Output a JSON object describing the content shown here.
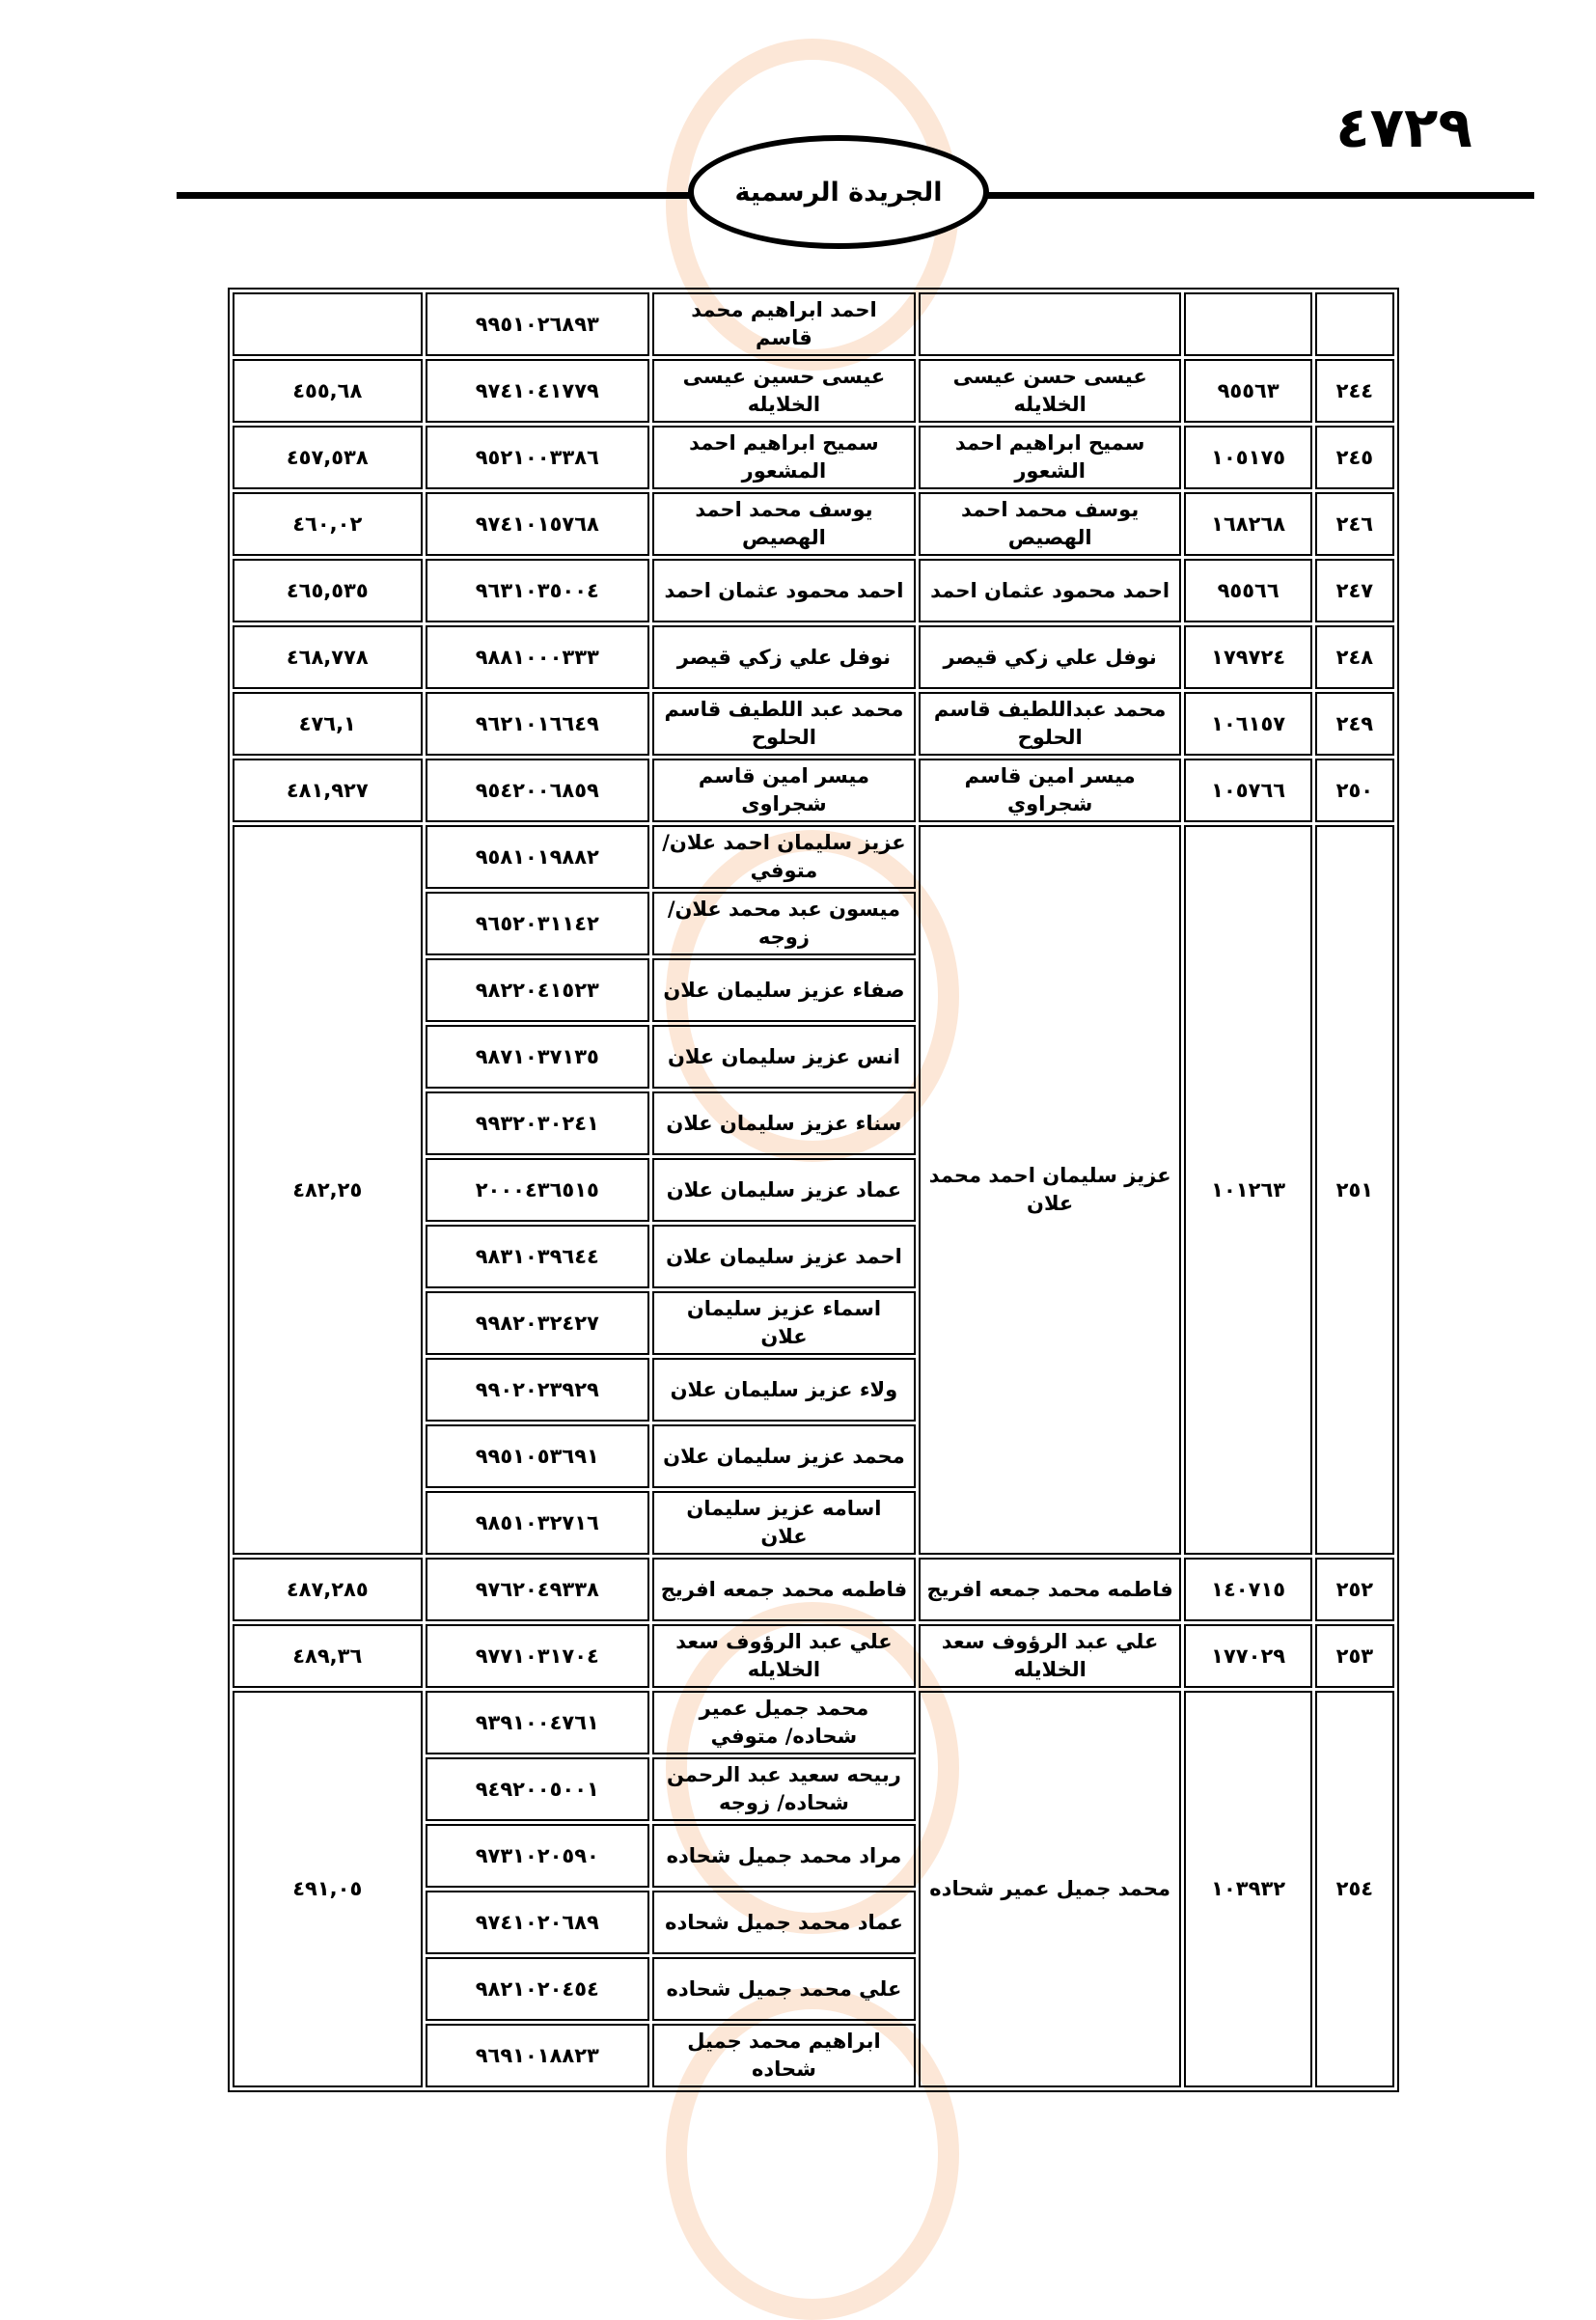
{
  "header": {
    "page_number": "٤٧٢٩",
    "title": "الجريدة الرسمية"
  },
  "rows": [
    {
      "serial": "",
      "number": "",
      "name": "",
      "heirs": [
        {
          "name": "احمد ابراهيم محمد قاسم",
          "id": "٩٩٥١٠٢٦٨٩٣"
        }
      ],
      "amount": ""
    },
    {
      "serial": "٢٤٤",
      "number": "٩٥٥٦٣",
      "name": "عيسى حسن عيسى الخلايله",
      "heirs": [
        {
          "name": "عيسى حسين عيسى الخلايله",
          "id": "٩٧٤١٠٤١٧٧٩"
        }
      ],
      "amount": "٤٥٥,٦٨"
    },
    {
      "serial": "٢٤٥",
      "number": "١٠٥١٧٥",
      "name": "سميح ابراهيم احمد الشعور",
      "heirs": [
        {
          "name": "سميح ابراهيم احمد المشعور",
          "id": "٩٥٢١٠٠٣٣٨٦"
        }
      ],
      "amount": "٤٥٧,٥٣٨"
    },
    {
      "serial": "٢٤٦",
      "number": "١٦٨٢٦٨",
      "name": "يوسف محمد احمد الهصيص",
      "heirs": [
        {
          "name": "يوسف محمد احمد الهصيص",
          "id": "٩٧٤١٠١٥٧٦٨"
        }
      ],
      "amount": "٤٦٠,٠٢"
    },
    {
      "serial": "٢٤٧",
      "number": "٩٥٥٦٦",
      "name": "احمد محمود عثمان احمد",
      "heirs": [
        {
          "name": "احمد محمود عثمان احمد",
          "id": "٩٦٣١٠٣٥٠٠٤"
        }
      ],
      "amount": "٤٦٥,٥٣٥"
    },
    {
      "serial": "٢٤٨",
      "number": "١٧٩٧٢٤",
      "name": "نوفل علي زكي قيصر",
      "heirs": [
        {
          "name": "نوفل علي زكي قيصر",
          "id": "٩٨٨١٠٠٠٣٣٣"
        }
      ],
      "amount": "٤٦٨,٧٧٨"
    },
    {
      "serial": "٢٤٩",
      "number": "١٠٦١٥٧",
      "name": "محمد عبداللطيف قاسم الحلوح",
      "heirs": [
        {
          "name": "محمد عبد اللطيف قاسم الحلوح",
          "id": "٩٦٢١٠١٦٦٤٩"
        }
      ],
      "amount": "٤٧٦,١"
    },
    {
      "serial": "٢٥٠",
      "number": "١٠٥٧٦٦",
      "name": "ميسر  امين قاسم  شجراوي",
      "heirs": [
        {
          "name": "ميسر امين قاسم شجراوى",
          "id": "٩٥٤٢٠٠٦٨٥٩"
        }
      ],
      "amount": "٤٨١,٩٢٧"
    },
    {
      "serial": "٢٥١",
      "number": "١٠١٢٦٣",
      "name": "عزيز سليمان احمد محمد علان",
      "heirs": [
        {
          "name": "عزيز سليمان احمد علان/ متوفي",
          "id": "٩٥٨١٠١٩٨٨٢"
        },
        {
          "name": "ميسون عبد محمد علان/زوجه",
          "id": "٩٦٥٢٠٣١١٤٢"
        },
        {
          "name": "صفاء عزيز سليمان علان",
          "id": "٩٨٢٢٠٤١٥٢٣"
        },
        {
          "name": "انس عزيز سليمان علان",
          "id": "٩٨٧١٠٣٧١٣٥"
        },
        {
          "name": "سناء عزيز سليمان علان",
          "id": "٩٩٣٢٠٣٠٢٤١"
        },
        {
          "name": "عماد عزيز سليمان علان",
          "id": "٢٠٠٠٤٣٦٥١٥"
        },
        {
          "name": "احمد عزيز سليمان علان",
          "id": "٩٨٣١٠٣٩٦٤٤"
        },
        {
          "name": "اسماء عزيز سليمان علان",
          "id": "٩٩٨٢٠٣٢٤٢٧"
        },
        {
          "name": "ولاء عزيز سليمان علان",
          "id": "٩٩٠٢٠٢٣٩٢٩"
        },
        {
          "name": "محمد عزيز سليمان علان",
          "id": "٩٩٥١٠٥٣٦٩١"
        },
        {
          "name": "اسامه عزيز سليمان علان",
          "id": "٩٨٥١٠٣٢٧١٦"
        }
      ],
      "amount": "٤٨٢,٢٥"
    },
    {
      "serial": "٢٥٢",
      "number": "١٤٠٧١٥",
      "name": "فاطمه محمد جمعه افريج",
      "heirs": [
        {
          "name": "فاطمه محمد جمعه افريج",
          "id": "٩٧٦٢٠٤٩٣٣٨"
        }
      ],
      "amount": "٤٨٧,٢٨٥"
    },
    {
      "serial": "٢٥٣",
      "number": "١٧٧٠٢٩",
      "name": "علي عبد الرؤوف سعد الخلايله",
      "heirs": [
        {
          "name": "علي عبد الرؤوف سعد الخلايله",
          "id": "٩٧٧١٠٣١٧٠٤"
        }
      ],
      "amount": "٤٨٩,٣٦"
    },
    {
      "serial": "٢٥٤",
      "number": "١٠٣٩٣٢",
      "name": "محمد جميل عمير شحاده",
      "heirs": [
        {
          "name": "محمد جميل عمير شحاده/ متوفي",
          "id": "٩٣٩١٠٠٤٧٦١"
        },
        {
          "name": "ربيحه سعيد عبد الرحمن شحاده/ زوجه",
          "id": "٩٤٩٢٠٠٥٠٠١"
        },
        {
          "name": "مراد محمد جميل شحاده",
          "id": "٩٧٣١٠٢٠٥٩٠"
        },
        {
          "name": "عماد محمد جميل شحاده",
          "id": "٩٧٤١٠٢٠٦٨٩"
        },
        {
          "name": "علي محمد جميل شحاده",
          "id": "٩٨٢١٠٢٠٤٥٤"
        },
        {
          "name": "ابراهيم محمد جميل شحاده",
          "id": "٩٦٩١٠١٨٨٢٣"
        }
      ],
      "amount": "٤٩١,٠٥"
    }
  ]
}
